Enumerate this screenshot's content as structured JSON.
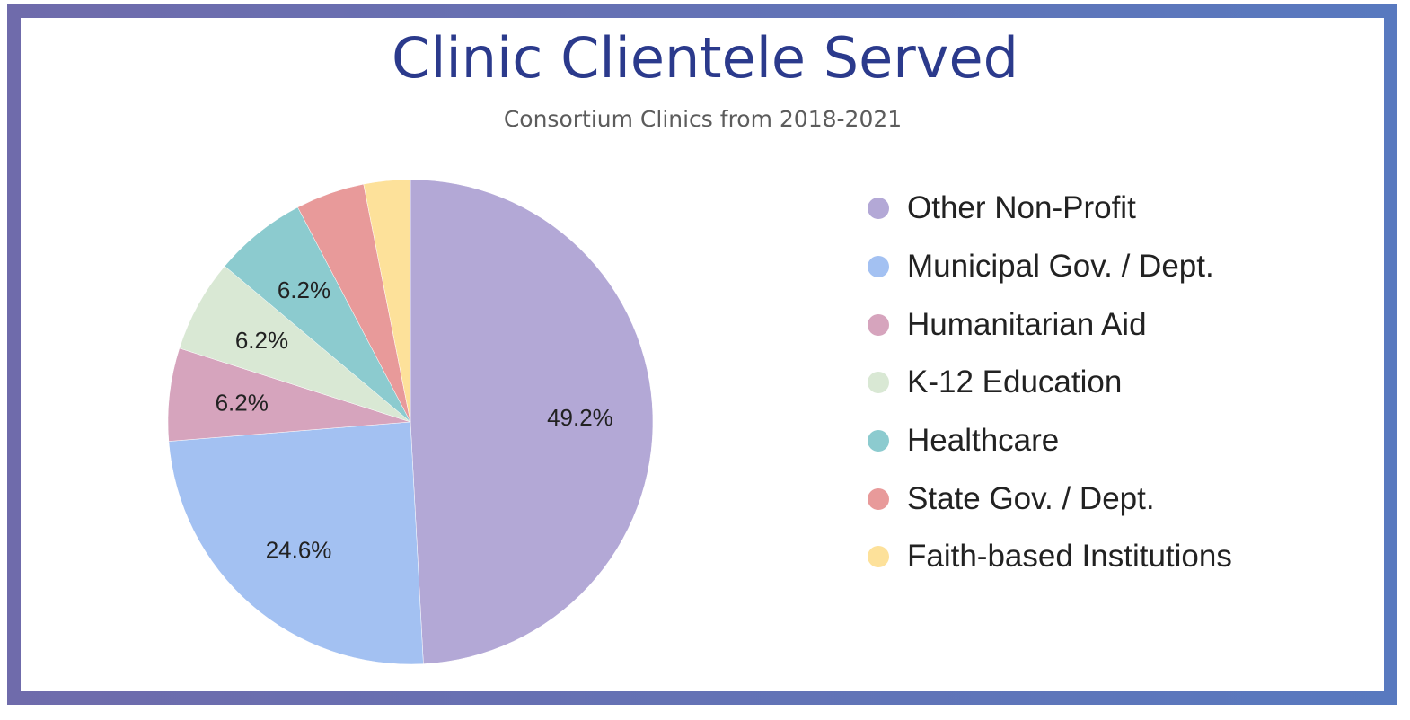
{
  "chart_data": {
    "type": "pie",
    "title": "Clinic Clientele Served",
    "subtitle": "Consortium Clinics from 2018-2021",
    "legend_position": "right",
    "start_angle": "top, clockwise",
    "slices": [
      {
        "name": "Other Non-Profit",
        "value": 49.2,
        "label": "49.2%",
        "color": "#b3a8d6"
      },
      {
        "name": "Municipal Gov. / Dept.",
        "value": 24.6,
        "label": "24.6%",
        "color": "#a3c1f2"
      },
      {
        "name": "Humanitarian Aid",
        "value": 6.2,
        "label": "6.2%",
        "color": "#d6a4bd"
      },
      {
        "name": "K-12 Education",
        "value": 6.2,
        "label": "6.2%",
        "color": "#d9e8d4"
      },
      {
        "name": "Healthcare",
        "value": 6.2,
        "label": "6.2%",
        "color": "#8ccbcf"
      },
      {
        "name": "State Gov. / Dept.",
        "value": 4.6,
        "label": "",
        "color": "#e89a9a"
      },
      {
        "name": "Faith-based Institutions",
        "value": 3.1,
        "label": "",
        "color": "#fde19a"
      }
    ]
  }
}
